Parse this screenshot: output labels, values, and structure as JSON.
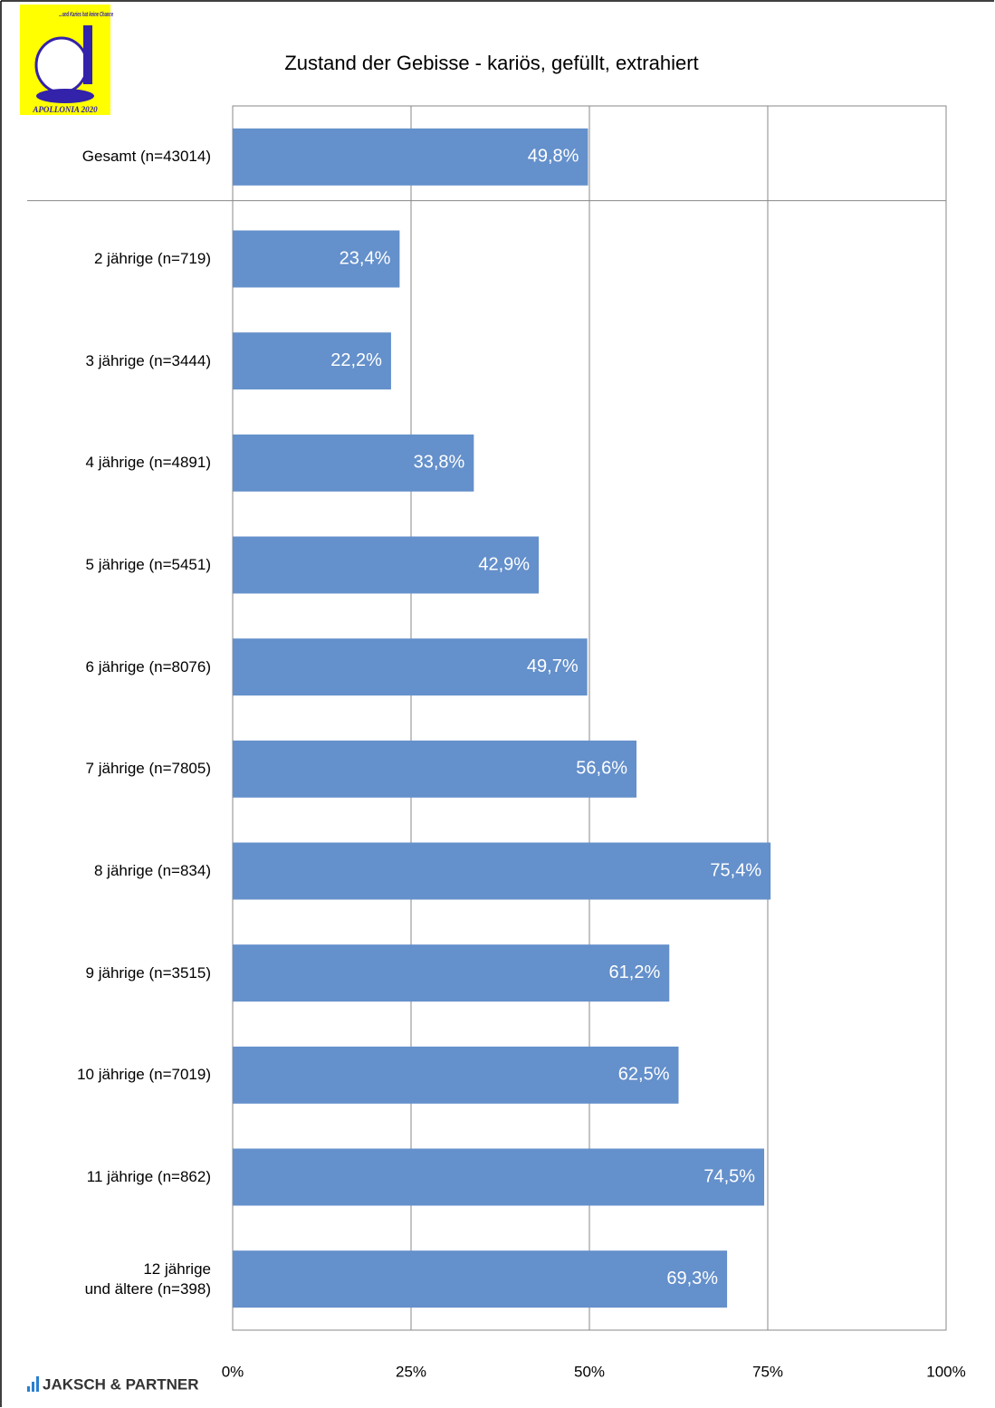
{
  "chart_data": {
    "type": "bar",
    "orientation": "horizontal",
    "title": "Zustand der Gebisse - kariös, gefüllt, extrahiert",
    "categories": [
      "Gesamt (n=43014)",
      "2 jährige  (n=719)",
      "3 jährige  (n=3444)",
      "4 jährige  (n=4891)",
      "5 jährige  (n=5451)",
      "6 jährige  (n=8076)",
      "7 jährige  (n=7805)",
      "8 jährige  (n=834)",
      "9 jährige  (n=3515)",
      "10 jährige (n=7019)",
      "11 jährige (n=862)",
      "12 jährige\nund ältere (n=398)"
    ],
    "values": [
      49.8,
      23.4,
      22.2,
      33.8,
      42.9,
      49.7,
      56.6,
      75.4,
      61.2,
      62.5,
      74.5,
      69.3
    ],
    "value_labels": [
      "49,8%",
      "23,4%",
      "22,2%",
      "33,8%",
      "42,9%",
      "49,7%",
      "56,6%",
      "75,4%",
      "61,2%",
      "62,5%",
      "74,5%",
      "69,3%"
    ],
    "color": "#6490cb",
    "xlim": [
      0,
      100
    ],
    "xticks": [
      {
        "value": 0,
        "label": "0%"
      },
      {
        "value": 25,
        "label": "25%"
      },
      {
        "value": 50,
        "label": "50%"
      },
      {
        "value": 75,
        "label": "75%"
      },
      {
        "value": 100,
        "label": "100%"
      }
    ],
    "grid": true
  },
  "logo": {
    "text": "...und Karies hat keine Chance",
    "caption": "APOLLONIA 2020"
  },
  "footer": {
    "brand": "JAKSCH & PARTNER"
  }
}
